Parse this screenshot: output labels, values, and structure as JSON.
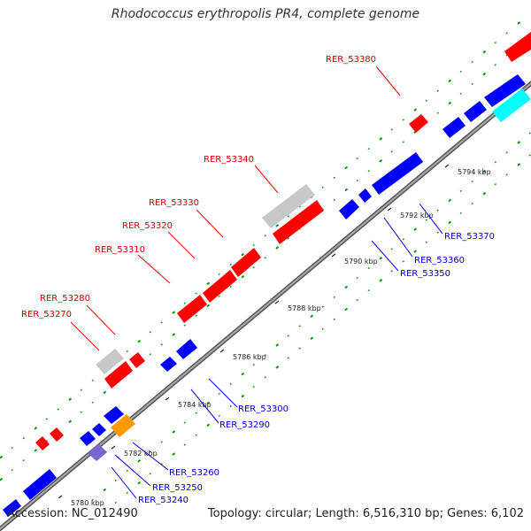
{
  "title": "Rhodococcus erythropolis PR4, complete genome",
  "footer": {
    "accession": "Accession: NC_012490",
    "summary": "Topology: circular; Length: 6,516,310 bp; Genes: 6,102"
  },
  "colors": {
    "forward": "#ff0000",
    "reverse": "#0000ff",
    "pseudo": "#c8c8c8",
    "orange": "#ff9900",
    "cyan": "#00ffff",
    "purple": "#7766cc",
    "backbone": "#888888",
    "dots": "#009900"
  },
  "ticks": [
    {
      "label": "5780 kbp"
    },
    {
      "label": "5782 kbp"
    },
    {
      "label": "5784 kbp"
    },
    {
      "label": "5786 kbp"
    },
    {
      "label": "5788 kbp"
    },
    {
      "label": "5790 kbp"
    },
    {
      "label": "5792 kbp"
    },
    {
      "label": "5794 kbp"
    }
  ],
  "gene_labels_top": [
    "RER_53380",
    "RER_53340",
    "RER_53330",
    "RER_53320",
    "RER_53310",
    "RER_53280",
    "RER_53270"
  ],
  "gene_labels_bottom": [
    "RER_53370",
    "RER_53360",
    "RER_53350",
    "RER_53300",
    "RER_53290",
    "RER_53260",
    "RER_53250",
    "RER_53240"
  ]
}
